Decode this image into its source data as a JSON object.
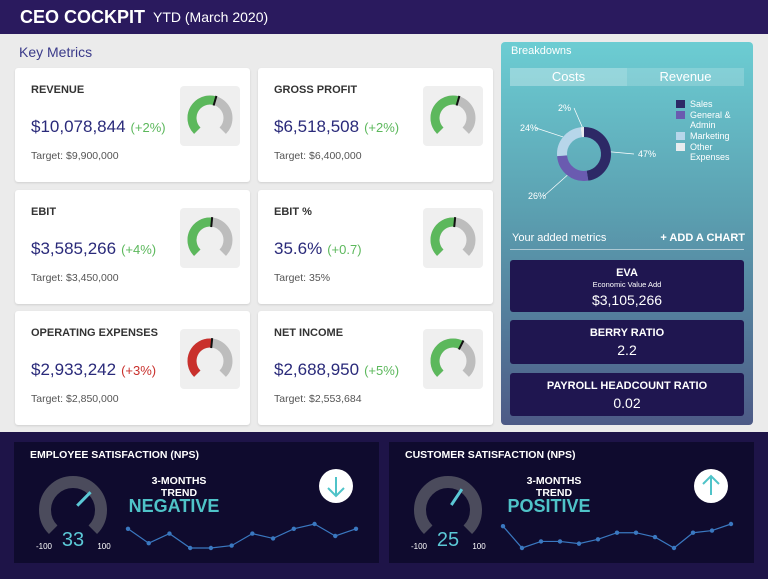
{
  "header": {
    "title": "CEO COCKPIT",
    "period": "YTD (March 2020)"
  },
  "key_metrics": {
    "title": "Key Metrics",
    "cards": [
      {
        "label": "REVENUE",
        "value": "$10,078,844",
        "change": "(+2%)",
        "target": "Target: $9,900,000",
        "gauge": 0.56,
        "color": "#5cb85c"
      },
      {
        "label": "GROSS PROFIT",
        "value": "$6,518,508",
        "change": "(+2%)",
        "target": "Target: $6,400,000",
        "gauge": 0.56,
        "color": "#5cb85c"
      },
      {
        "label": "EBIT",
        "value": "$3,585,266",
        "change": "(+4%)",
        "target": "Target: $3,450,000",
        "gauge": 0.52,
        "color": "#5cb85c"
      },
      {
        "label": "EBIT %",
        "value": "35.6%",
        "change": "(+0.7)",
        "target": "Target: 35%",
        "gauge": 0.52,
        "color": "#5cb85c"
      },
      {
        "label": "OPERATING EXPENSES",
        "value": "$2,933,242",
        "change": "(+3%)",
        "target": "Target: $2,850,000",
        "gauge": 0.52,
        "color": "#c9302c"
      },
      {
        "label": "NET INCOME",
        "value": "$2,688,950",
        "change": "(+5%)",
        "target": "Target: $2,553,684",
        "gauge": 0.6,
        "color": "#5cb85c"
      }
    ]
  },
  "breakdowns": {
    "title": "Breakdowns",
    "tabs": [
      "Costs",
      "Revenue"
    ],
    "slices": [
      {
        "name": "Sales",
        "value": 47,
        "label": "47%",
        "color": "#2d2966"
      },
      {
        "name": "General & Admin",
        "value": 26,
        "label": "26%",
        "color": "#6a5bb0"
      },
      {
        "name": "Marketing",
        "value": 24,
        "label": "24%",
        "color": "#b7d6ea"
      },
      {
        "name": "Other Expenses",
        "value": 2,
        "label": "2%",
        "color": "#e8ecef"
      }
    ],
    "added_metrics": "Your added metrics",
    "add_chart": "+ ADD A CHART",
    "metrics": [
      {
        "title": "EVA",
        "subtitle": "Economic Value Add",
        "value": "$3,105,266"
      },
      {
        "title": "BERRY RATIO",
        "value": "2.2"
      },
      {
        "title": "PAYROLL HEADCOUNT RATIO",
        "value": "0.02"
      }
    ]
  },
  "satisfaction": [
    {
      "title": "EMPLOYEE SATISFACTION (NPS)",
      "score": 33,
      "min": -100,
      "max": 100,
      "trend_title": "3-MONTHS TREND",
      "trend": "NEGATIVE",
      "direction": "down",
      "sparkline": [
        60,
        30,
        50,
        20,
        20,
        25,
        50,
        40,
        60,
        70,
        45,
        60
      ]
    },
    {
      "title": "CUSTOMER SATISFACTION (NPS)",
      "score": 25,
      "min": -100,
      "max": 100,
      "trend_title": "3-MONTHS TREND",
      "trend": "POSITIVE",
      "direction": "up",
      "sparkline": [
        70,
        20,
        35,
        35,
        30,
        40,
        55,
        55,
        45,
        20,
        55,
        60,
        75
      ]
    }
  ]
}
